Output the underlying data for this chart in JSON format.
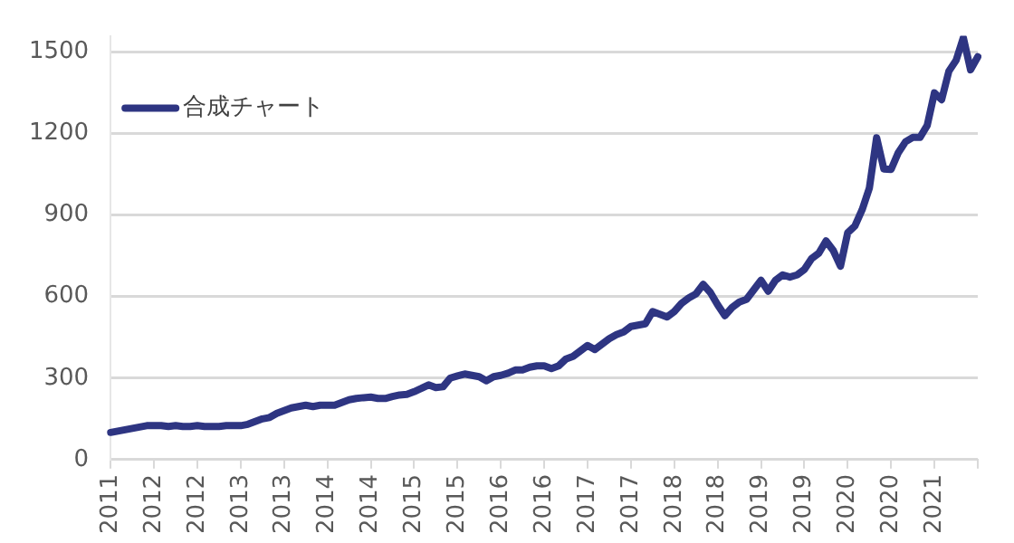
{
  "chart_data": {
    "type": "line",
    "legend": "top left",
    "grid": "y",
    "marker": "none",
    "line_style": "solid",
    "categories": [
      "2011",
      null,
      null,
      null,
      null,
      null,
      "2012",
      null,
      null,
      null,
      null,
      null,
      "2012",
      null,
      null,
      null,
      null,
      null,
      "2013",
      null,
      null,
      null,
      null,
      null,
      "2013",
      null,
      null,
      null,
      null,
      null,
      "2014",
      null,
      null,
      null,
      null,
      null,
      "2014",
      null,
      null,
      null,
      null,
      null,
      "2015",
      null,
      null,
      null,
      null,
      null,
      "2015",
      null,
      null,
      null,
      null,
      null,
      "2016",
      null,
      null,
      null,
      null,
      null,
      "2016",
      null,
      null,
      null,
      null,
      null,
      "2017",
      null,
      null,
      null,
      null,
      null,
      "2017",
      null,
      null,
      null,
      null,
      null,
      "2018",
      null,
      null,
      null,
      null,
      null,
      "2018",
      null,
      null,
      null,
      null,
      null,
      "2019",
      null,
      null,
      null,
      null,
      null,
      "2019",
      null,
      null,
      null,
      null,
      null,
      "2020",
      null,
      null,
      null,
      null,
      null,
      "2020",
      null,
      null,
      null,
      null,
      null,
      "2021",
      null,
      null,
      null,
      null,
      null,
      null
    ],
    "ylim": [
      0,
      1560
    ],
    "yticks": [
      0,
      300,
      600,
      900,
      1200,
      1500
    ],
    "series": [
      {
        "name": "合成チャート",
        "color": "#2e3582",
        "values": [
          100,
          105,
          110,
          115,
          120,
          125,
          125,
          125,
          122,
          125,
          122,
          122,
          125,
          122,
          122,
          122,
          125,
          125,
          125,
          130,
          140,
          150,
          155,
          170,
          180,
          190,
          195,
          200,
          195,
          200,
          200,
          200,
          210,
          220,
          225,
          228,
          230,
          225,
          225,
          232,
          238,
          240,
          250,
          262,
          275,
          265,
          268,
          300,
          308,
          315,
          310,
          305,
          290,
          305,
          310,
          318,
          330,
          330,
          340,
          345,
          345,
          335,
          345,
          370,
          380,
          400,
          420,
          405,
          425,
          445,
          460,
          470,
          490,
          495,
          500,
          545,
          535,
          525,
          545,
          575,
          595,
          610,
          645,
          615,
          570,
          530,
          560,
          580,
          590,
          625,
          660,
          620,
          660,
          680,
          672,
          680,
          700,
          740,
          760,
          805,
          770,
          712,
          835,
          860,
          920,
          1000,
          1185,
          1070,
          1068,
          1130,
          1170,
          1186,
          1186,
          1230,
          1350,
          1325,
          1430,
          1470,
          1553,
          1435,
          1483
        ]
      }
    ]
  }
}
